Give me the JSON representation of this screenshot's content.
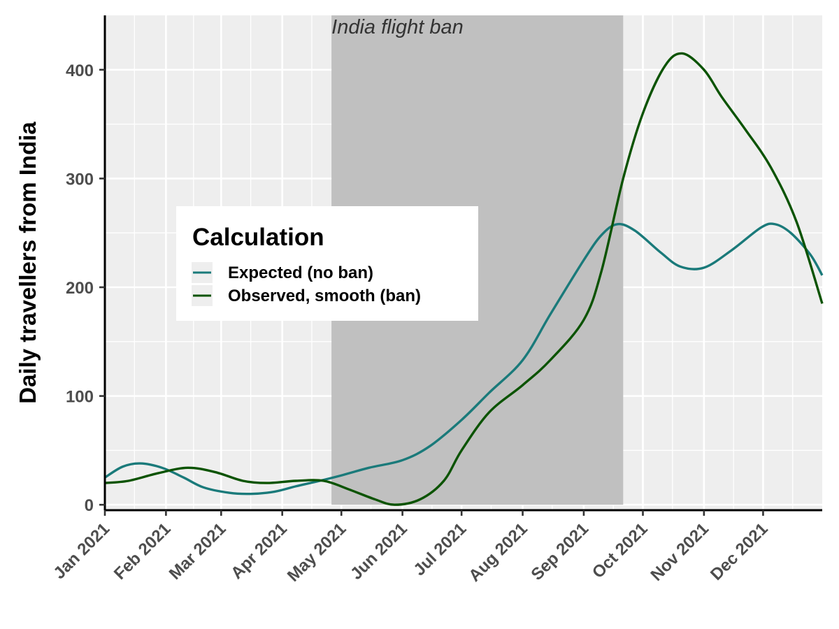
{
  "chart_data": {
    "type": "line",
    "title": "",
    "xlabel": "",
    "ylabel": "Daily travellers from India",
    "x_ticks": [
      "Jan 2021",
      "Feb 2021",
      "Mar 2021",
      "Apr 2021",
      "May 2021",
      "Jun 2021",
      "Jul 2021",
      "Aug 2021",
      "Sep 2021",
      "Oct 2021",
      "Nov 2021",
      "Dec 2021"
    ],
    "y_ticks": [
      0,
      100,
      200,
      300,
      400
    ],
    "xlim": [
      "2021-01-01",
      "2021-12-31"
    ],
    "ylim": [
      -5,
      450
    ],
    "grid": true,
    "legend": {
      "title": "Calculation",
      "placement": "left-middle"
    },
    "annotation": {
      "text": "India flight ban",
      "start": "2021-04-26",
      "end": "2021-09-21",
      "color": "#c0c0c0"
    },
    "series": [
      {
        "name": "Expected (no ban)",
        "color": "#1a7a7a",
        "points": [
          [
            "2021-01-01",
            25
          ],
          [
            "2021-01-10",
            35
          ],
          [
            "2021-01-19",
            38
          ],
          [
            "2021-01-30",
            34
          ],
          [
            "2021-02-10",
            25
          ],
          [
            "2021-02-20",
            16
          ],
          [
            "2021-03-05",
            11
          ],
          [
            "2021-03-16",
            10
          ],
          [
            "2021-03-28",
            12
          ],
          [
            "2021-04-08",
            17
          ],
          [
            "2021-04-20",
            22
          ],
          [
            "2021-05-01",
            27
          ],
          [
            "2021-05-15",
            34
          ],
          [
            "2021-06-01",
            41
          ],
          [
            "2021-06-15",
            54
          ],
          [
            "2021-07-01",
            78
          ],
          [
            "2021-07-15",
            103
          ],
          [
            "2021-08-01",
            133
          ],
          [
            "2021-08-15",
            175
          ],
          [
            "2021-09-01",
            225
          ],
          [
            "2021-09-10",
            248
          ],
          [
            "2021-09-18",
            258
          ],
          [
            "2021-09-27",
            252
          ],
          [
            "2021-10-10",
            232
          ],
          [
            "2021-10-20",
            219
          ],
          [
            "2021-11-01",
            218
          ],
          [
            "2021-11-15",
            234
          ],
          [
            "2021-11-30",
            255
          ],
          [
            "2021-12-07",
            258
          ],
          [
            "2021-12-15",
            250
          ],
          [
            "2021-12-25",
            230
          ],
          [
            "2021-12-31",
            211
          ]
        ]
      },
      {
        "name": "Observed, smooth (ban)",
        "color": "#0b5300",
        "points": [
          [
            "2021-01-01",
            20
          ],
          [
            "2021-01-13",
            22
          ],
          [
            "2021-01-28",
            29
          ],
          [
            "2021-02-12",
            34
          ],
          [
            "2021-02-26",
            30
          ],
          [
            "2021-03-12",
            22
          ],
          [
            "2021-03-24",
            20
          ],
          [
            "2021-04-08",
            22
          ],
          [
            "2021-04-22",
            22
          ],
          [
            "2021-05-05",
            14
          ],
          [
            "2021-05-18",
            5
          ],
          [
            "2021-05-28",
            0
          ],
          [
            "2021-06-10",
            5
          ],
          [
            "2021-06-22",
            22
          ],
          [
            "2021-07-01",
            50
          ],
          [
            "2021-07-15",
            85
          ],
          [
            "2021-08-01",
            110
          ],
          [
            "2021-08-15",
            133
          ],
          [
            "2021-09-01",
            170
          ],
          [
            "2021-09-10",
            215
          ],
          [
            "2021-09-21",
            300
          ],
          [
            "2021-10-01",
            360
          ],
          [
            "2021-10-12",
            403
          ],
          [
            "2021-10-21",
            415
          ],
          [
            "2021-11-01",
            400
          ],
          [
            "2021-11-10",
            375
          ],
          [
            "2021-11-22",
            345
          ],
          [
            "2021-12-05",
            310
          ],
          [
            "2021-12-18",
            260
          ],
          [
            "2021-12-31",
            185
          ]
        ]
      }
    ]
  }
}
